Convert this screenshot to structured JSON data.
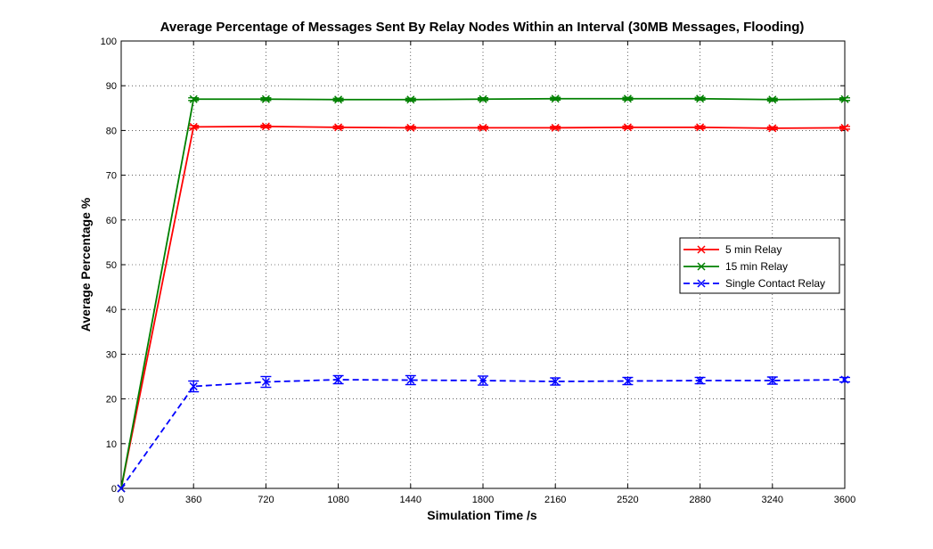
{
  "chart_data": {
    "type": "line",
    "title": "Average Percentage of Messages Sent By Relay Nodes Within an Interval (30MB Messages, Flooding)",
    "xlabel": "Simulation Time /s",
    "ylabel": "Average Percentage %",
    "xlim": [
      0,
      3600
    ],
    "ylim": [
      0,
      100
    ],
    "xticks": [
      0,
      360,
      720,
      1080,
      1440,
      1800,
      2160,
      2520,
      2880,
      3240,
      3600
    ],
    "yticks": [
      0,
      10,
      20,
      30,
      40,
      50,
      60,
      70,
      80,
      90,
      100
    ],
    "grid": true,
    "legend_position": "right",
    "x": [
      0,
      360,
      720,
      1080,
      1440,
      1800,
      2160,
      2520,
      2880,
      3240,
      3600
    ],
    "series": [
      {
        "name": "5 min Relay",
        "color": "#ff0000",
        "line_style": "solid",
        "marker": "x",
        "values": [
          0,
          80.8,
          80.9,
          80.7,
          80.6,
          80.6,
          80.6,
          80.7,
          80.7,
          80.5,
          80.6
        ],
        "errors": [
          0,
          0.3,
          0.3,
          0.3,
          0.3,
          0.3,
          0.3,
          0.3,
          0.3,
          0.3,
          0.3
        ]
      },
      {
        "name": "15 min Relay",
        "color": "#008000",
        "line_style": "solid",
        "marker": "x",
        "values": [
          0,
          87.0,
          87.0,
          86.9,
          86.9,
          87.0,
          87.1,
          87.1,
          87.1,
          86.9,
          87.0
        ],
        "errors": [
          0,
          0.3,
          0.3,
          0.3,
          0.3,
          0.3,
          0.3,
          0.3,
          0.3,
          0.3,
          0.3
        ]
      },
      {
        "name": "Single Contact Relay",
        "color": "#0000ff",
        "line_style": "dashed",
        "marker": "x",
        "values": [
          0,
          22.8,
          23.8,
          24.3,
          24.2,
          24.1,
          23.9,
          24.0,
          24.1,
          24.1,
          24.3
        ],
        "errors": [
          0,
          1.2,
          1.2,
          0.9,
          1.0,
          1.0,
          0.8,
          0.8,
          0.7,
          0.8,
          0.5
        ]
      }
    ]
  }
}
